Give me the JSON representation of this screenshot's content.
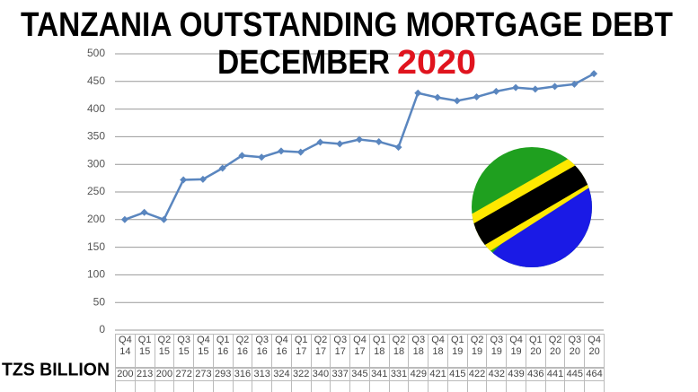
{
  "chart_data": {
    "type": "line",
    "title_line1": "TANZANIA OUTSTANDING MORTGAGE DEBT",
    "title_line2": "DECEMBER",
    "title_year": "2020",
    "unit_label": "TZS BILLION",
    "categories": [
      "Q4 14",
      "Q1 15",
      "Q2 15",
      "Q3 15",
      "Q4 15",
      "Q1 16",
      "Q2 16",
      "Q3 16",
      "Q4 16",
      "Q1 17",
      "Q2 17",
      "Q3 17",
      "Q4 17",
      "Q1 18",
      "Q2 18",
      "Q3 18",
      "Q4 18",
      "Q1 19",
      "Q2 19",
      "Q3 19",
      "Q4 19",
      "Q1 20",
      "Q2 20",
      "Q3 20",
      "Q4 20"
    ],
    "values": [
      200,
      213,
      200,
      272,
      273,
      293,
      316,
      313,
      324,
      322,
      340,
      337,
      345,
      341,
      331,
      429,
      421,
      415,
      422,
      432,
      439,
      436,
      441,
      445,
      464
    ],
    "color": "#5a86bf",
    "ylim": [
      0,
      500
    ],
    "yticks": [
      0,
      50,
      100,
      150,
      200,
      250,
      300,
      350,
      400,
      450,
      500
    ],
    "grid": true
  }
}
